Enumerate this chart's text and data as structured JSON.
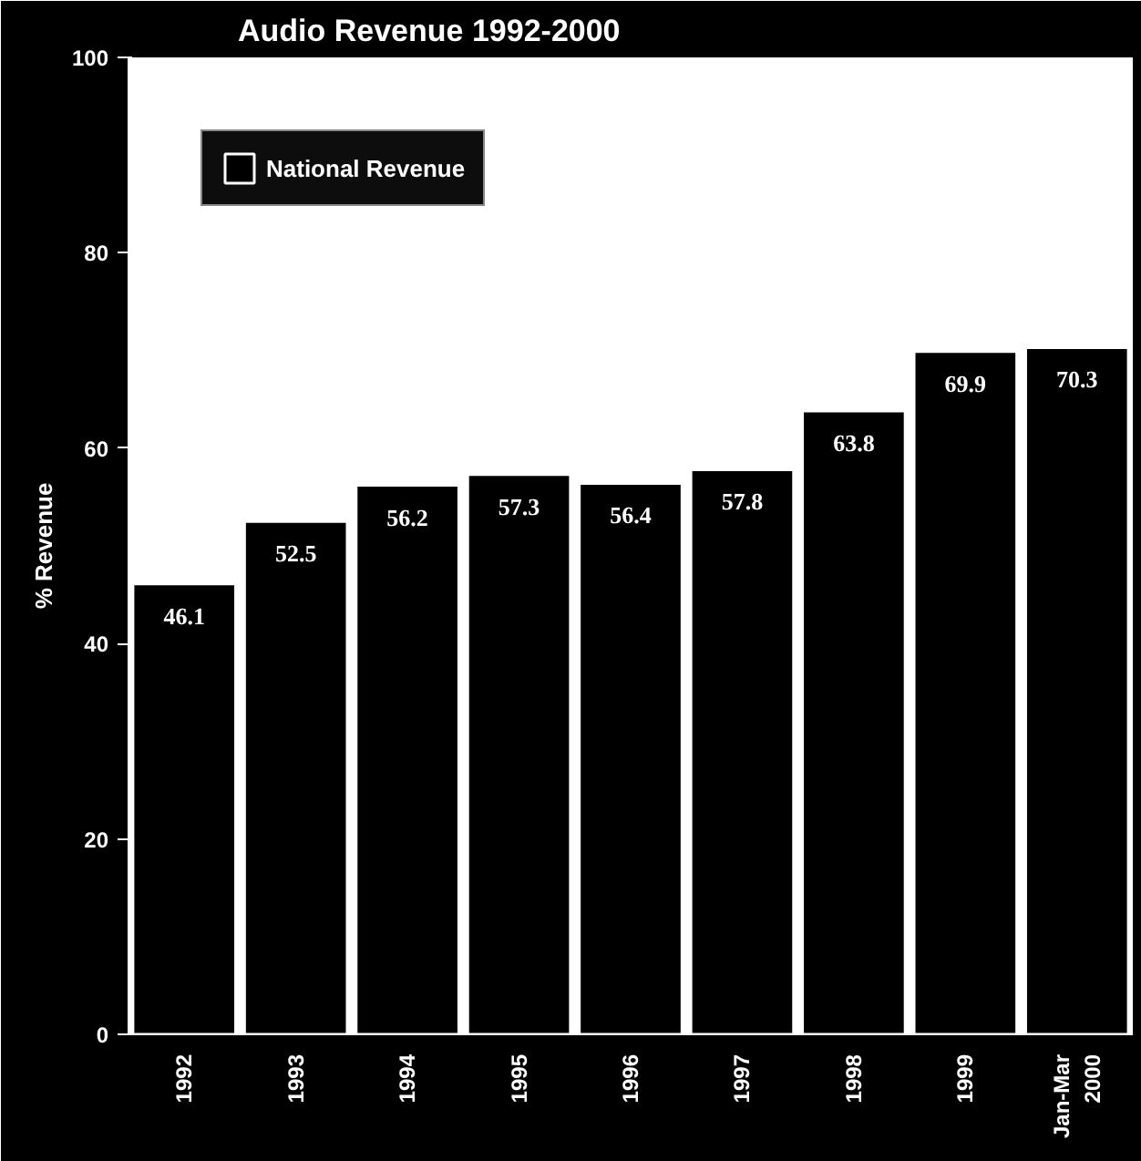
{
  "chart_data": {
    "type": "bar",
    "title": "Audio Revenue 1992-2000",
    "ylabel": "% Revenue",
    "categories": [
      "1992",
      "1993",
      "1994",
      "1995",
      "1996",
      "1997",
      "1998",
      "1999",
      "Jan-Mar 2000"
    ],
    "series": [
      {
        "name": "National Revenue",
        "color": "#000000",
        "values": [
          46.1,
          52.5,
          56.2,
          57.3,
          56.4,
          57.8,
          63.8,
          69.9,
          70.3
        ]
      }
    ],
    "ylim": [
      0,
      100
    ],
    "yticks": [
      0,
      20,
      40,
      60,
      80,
      100
    ],
    "data_labels": true,
    "legend": "top left",
    "grid": false
  }
}
